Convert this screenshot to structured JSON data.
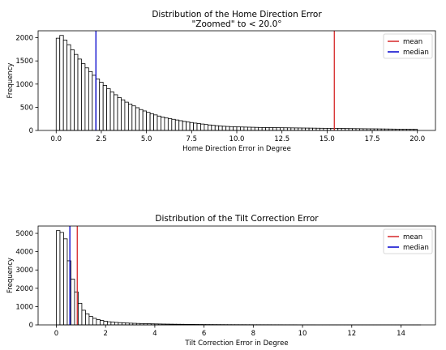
{
  "chart_data": [
    {
      "type": "bar",
      "title": "Distribution of the Home Direction Error",
      "subtitle": "\"Zoomed\" to < 20.0°",
      "xlabel": "Home Direction Error in Degree",
      "ylabel": "Frequency",
      "xlim": [
        -1.0,
        21.0
      ],
      "ylim": [
        0,
        2150
      ],
      "xticks": [
        0.0,
        2.5,
        5.0,
        7.5,
        10.0,
        12.5,
        15.0,
        17.5,
        20.0
      ],
      "xtick_labels": [
        "0.0",
        "2.5",
        "5.0",
        "7.5",
        "10.0",
        "12.5",
        "15.0",
        "17.5",
        "20.0"
      ],
      "yticks": [
        0,
        500,
        1000,
        1500,
        2000
      ],
      "ytick_labels": [
        "0",
        "500",
        "1000",
        "1500",
        "2000"
      ],
      "bin_start": 0.0,
      "bin_width": 0.2,
      "values": [
        1990,
        2050,
        1950,
        1850,
        1740,
        1640,
        1540,
        1440,
        1350,
        1270,
        1190,
        1110,
        1040,
        970,
        900,
        830,
        770,
        710,
        660,
        610,
        570,
        530,
        490,
        450,
        420,
        390,
        360,
        335,
        310,
        290,
        270,
        255,
        240,
        225,
        210,
        195,
        182,
        170,
        158,
        148,
        138,
        128,
        118,
        110,
        102,
        95,
        90,
        86,
        82,
        79,
        76,
        74,
        72,
        70,
        68,
        66,
        64,
        63,
        62,
        61,
        60,
        59,
        58,
        57,
        56,
        55,
        54,
        53,
        52,
        51,
        50,
        49,
        48,
        47,
        46,
        46,
        45,
        44,
        43,
        42,
        41,
        40,
        39,
        38,
        37,
        36,
        35,
        35,
        34,
        33,
        32,
        31,
        30,
        29,
        28,
        27,
        26,
        26,
        25,
        25
      ],
      "mean": 15.4,
      "median": 2.2,
      "legend": [
        "mean",
        "median"
      ],
      "legend_position": "top-right",
      "colors": {
        "mean": "#d62728",
        "median": "#0000cc"
      }
    },
    {
      "type": "bar",
      "title": "Distribution of the Tilt Correction Error",
      "xlabel": "Tilt Correction Error in Degree",
      "ylabel": "Frequency",
      "xlim": [
        -0.74,
        15.4
      ],
      "ylim": [
        0,
        5400
      ],
      "xticks": [
        0,
        2,
        4,
        6,
        8,
        10,
        12,
        14
      ],
      "xtick_labels": [
        "0",
        "2",
        "4",
        "6",
        "8",
        "10",
        "12",
        "14"
      ],
      "yticks": [
        0,
        1000,
        2000,
        3000,
        4000,
        5000
      ],
      "ytick_labels": [
        "0",
        "1000",
        "2000",
        "3000",
        "4000",
        "5000"
      ],
      "bin_start": 0.0,
      "bin_width": 0.148,
      "values": [
        5150,
        5050,
        4700,
        3500,
        2500,
        1800,
        1180,
        800,
        600,
        460,
        360,
        290,
        240,
        200,
        170,
        150,
        135,
        122,
        110,
        100,
        92,
        85,
        78,
        72,
        67,
        62,
        57,
        53,
        49,
        45,
        42,
        39,
        36,
        34,
        32,
        30,
        28,
        26,
        24,
        22,
        20,
        19,
        18,
        17,
        16,
        15,
        14,
        13,
        12,
        12,
        11,
        11,
        10,
        10,
        9,
        9,
        8,
        8,
        8,
        7,
        7,
        7,
        6,
        6,
        6,
        6,
        5,
        5,
        5,
        5,
        5,
        4,
        4,
        4,
        4,
        4,
        4,
        3,
        3,
        3,
        3,
        3,
        3,
        3,
        3,
        2,
        2,
        2,
        2,
        2,
        2,
        2,
        2,
        2,
        2,
        2,
        1,
        1,
        1,
        1
      ],
      "mean": 0.85,
      "median": 0.55,
      "legend": [
        "mean",
        "median"
      ],
      "legend_position": "top-right",
      "colors": {
        "mean": "#d62728",
        "median": "#0000cc"
      }
    }
  ]
}
